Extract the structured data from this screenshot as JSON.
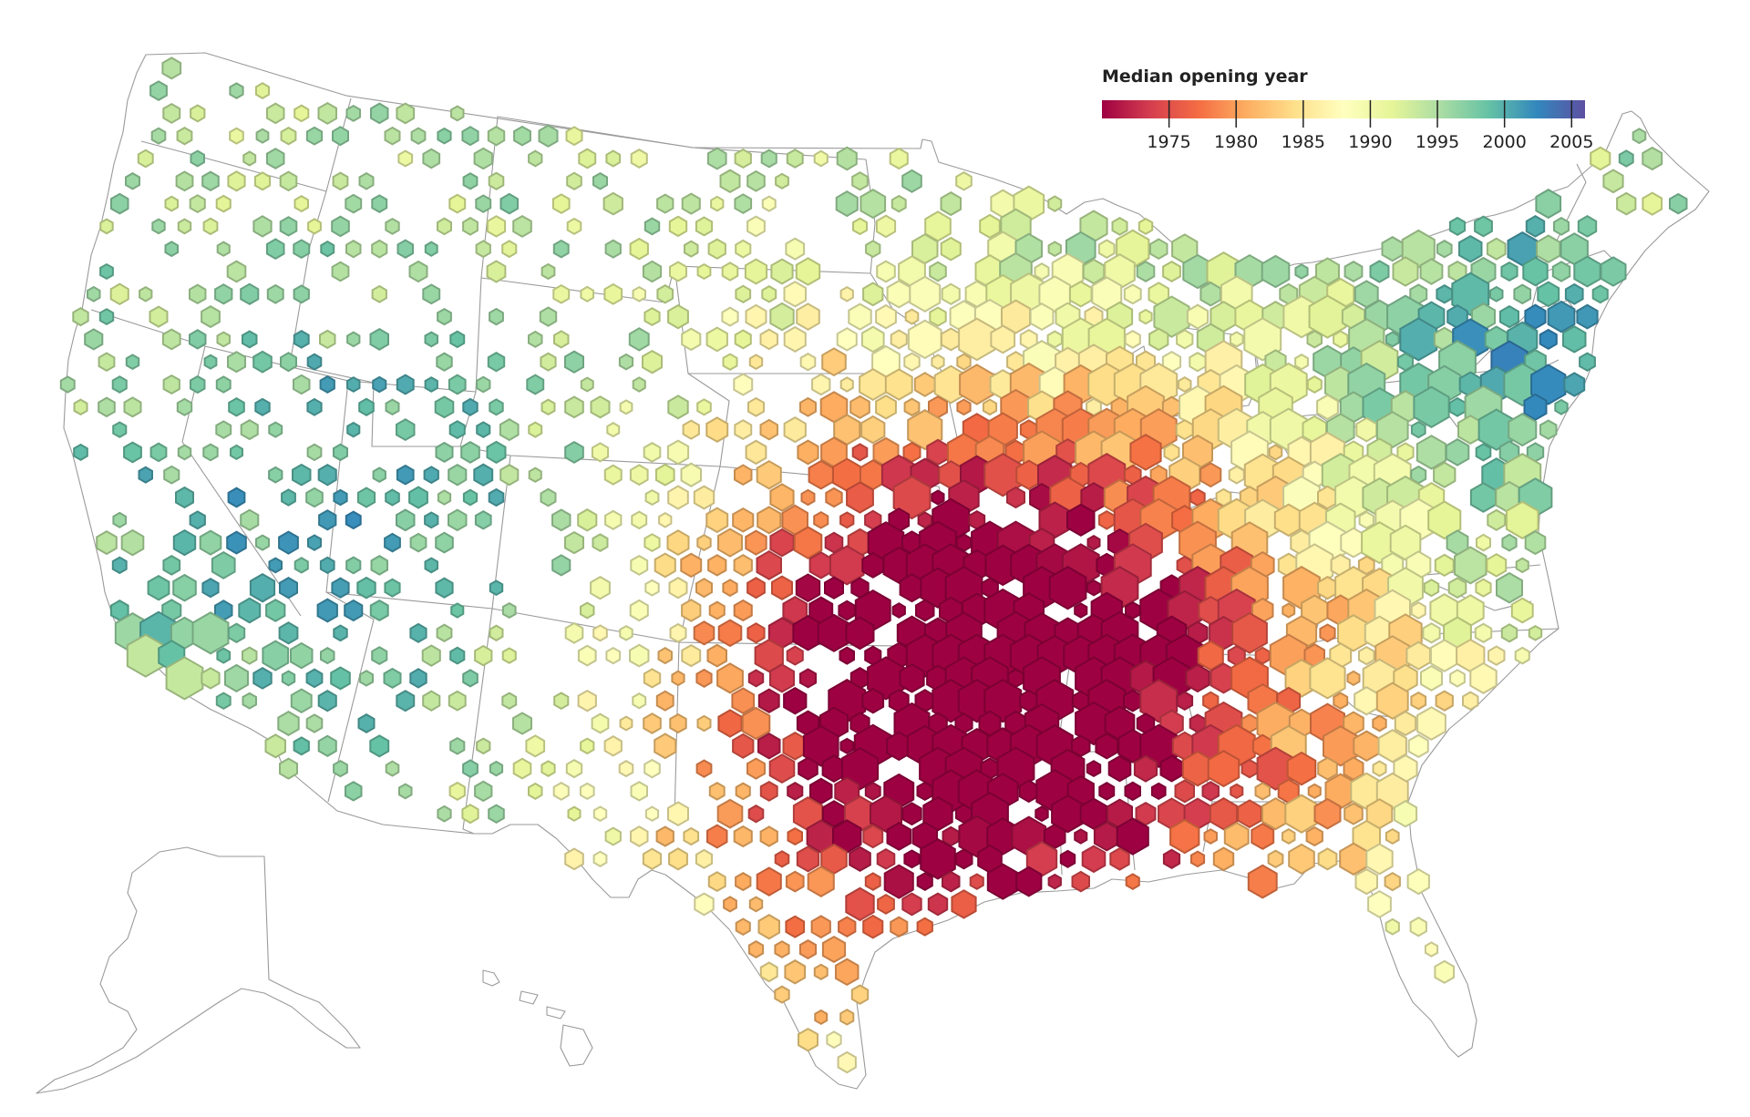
{
  "legend": {
    "title": "Median opening year",
    "domain": [
      1970,
      2006
    ],
    "ticks": [
      "1975",
      "1980",
      "1985",
      "1990",
      "1995",
      "2000",
      "2005"
    ],
    "colors": [
      "#9e0142",
      "#d53e4f",
      "#f46d43",
      "#fdae61",
      "#fee08b",
      "#ffffbf",
      "#e6f598",
      "#abdda4",
      "#66c2a5",
      "#3288bd",
      "#5e4fa2"
    ]
  },
  "chart_data": {
    "type": "hexbin",
    "legend_title": "Median opening year",
    "colorbar_range": [
      1970,
      2006
    ],
    "colorbar_ticks": [
      1975,
      1980,
      1985,
      1990,
      1995,
      2000,
      2005
    ],
    "encoding": "hexagon color = median store opening year; hexagon size = store count"
  }
}
